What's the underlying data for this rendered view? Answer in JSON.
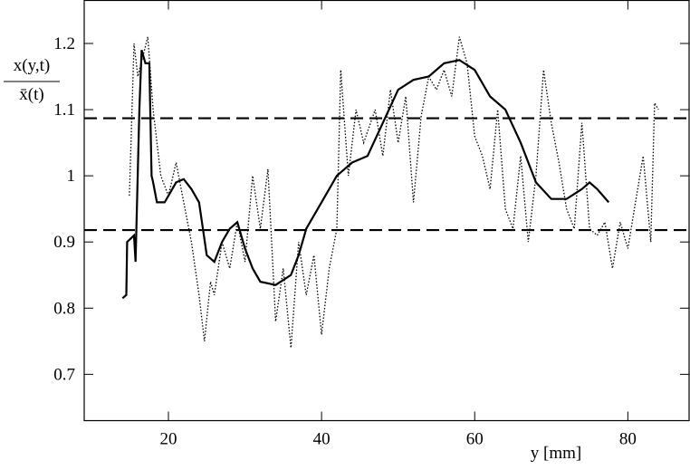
{
  "chart_data": {
    "type": "line",
    "x_label": "y [mm]",
    "y_label_numerator": "x(y,t)",
    "y_label_denominator": "x̄(t)",
    "xlim": [
      9,
      88
    ],
    "ylim": [
      0.63,
      1.265
    ],
    "xticks": [
      20,
      40,
      60,
      80
    ],
    "yticks": [
      0.7,
      0.8,
      0.9,
      1,
      1.1,
      1.2
    ],
    "reference_lines": [
      1.087,
      0.918
    ],
    "series": [
      {
        "color": "#000000",
        "style": "solid",
        "x": [
          14,
          14.5,
          14.6,
          15.5,
          15.7,
          16.2,
          16.5,
          17,
          17.5,
          17.8,
          18,
          18.5,
          19.5,
          21,
          22,
          23,
          24,
          24.5,
          25,
          26,
          27,
          28,
          29,
          30,
          31,
          32,
          34,
          36,
          37,
          38,
          40,
          42,
          44,
          46,
          48,
          50,
          52,
          54,
          56,
          58,
          60,
          62,
          64,
          66,
          68,
          70,
          72,
          74,
          75,
          76,
          77.5
        ],
        "values": [
          0.815,
          0.82,
          0.9,
          0.91,
          0.87,
          1.1,
          1.19,
          1.17,
          1.17,
          1.0,
          0.99,
          0.96,
          0.96,
          0.99,
          0.995,
          0.98,
          0.96,
          0.92,
          0.88,
          0.87,
          0.9,
          0.92,
          0.93,
          0.89,
          0.86,
          0.84,
          0.835,
          0.85,
          0.88,
          0.92,
          0.96,
          1.0,
          1.02,
          1.03,
          1.08,
          1.13,
          1.145,
          1.15,
          1.17,
          1.175,
          1.16,
          1.12,
          1.1,
          1.05,
          0.99,
          0.965,
          0.965,
          0.98,
          0.99,
          0.98,
          0.96
        ]
      },
      {
        "color": "#000000",
        "style": "dotted",
        "x": [
          14.9,
          15.5,
          16,
          17.3,
          18,
          19,
          20,
          21,
          22,
          23,
          24,
          24.7,
          25.5,
          26,
          27,
          28,
          29,
          30,
          31,
          32,
          33,
          34,
          35,
          36,
          37,
          38,
          39,
          40,
          41,
          42,
          42.5,
          43.5,
          44.5,
          45.5,
          47,
          48,
          49,
          50,
          51,
          52,
          53,
          54,
          55,
          56,
          57,
          58,
          59,
          60,
          61,
          62,
          63,
          64,
          65,
          66,
          67,
          68,
          69,
          70,
          71,
          72,
          73,
          74,
          75,
          76,
          77,
          78,
          79,
          80,
          81,
          82,
          83,
          83.5,
          84
        ],
        "values": [
          0.97,
          1.2,
          1.15,
          1.21,
          1.1,
          1.0,
          0.97,
          1.02,
          0.96,
          0.9,
          0.82,
          0.75,
          0.84,
          0.82,
          0.9,
          0.86,
          0.93,
          0.87,
          1.0,
          0.92,
          1.01,
          0.78,
          0.86,
          0.74,
          0.9,
          0.82,
          0.88,
          0.76,
          0.86,
          0.92,
          1.16,
          1.0,
          1.1,
          1.05,
          1.1,
          1.03,
          1.13,
          1.05,
          1.12,
          0.96,
          1.09,
          1.15,
          1.13,
          1.16,
          1.12,
          1.21,
          1.17,
          1.06,
          1.03,
          0.98,
          1.1,
          0.95,
          0.92,
          1.03,
          0.9,
          1.0,
          1.16,
          1.08,
          1.02,
          0.95,
          0.92,
          1.08,
          0.92,
          0.91,
          0.93,
          0.86,
          0.93,
          0.89,
          0.96,
          1.03,
          0.9,
          1.11,
          1.1
        ]
      }
    ]
  }
}
